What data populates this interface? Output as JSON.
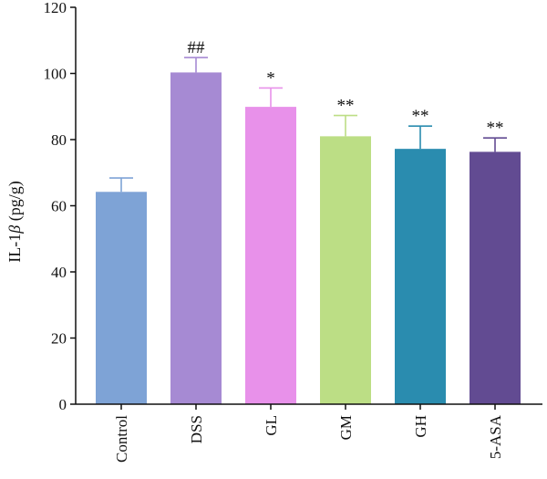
{
  "chart_data": {
    "type": "bar",
    "categories": [
      "Control",
      "DSS",
      "GL",
      "GM",
      "GH",
      "5-ASA"
    ],
    "values": [
      64.2,
      100.3,
      89.9,
      81.0,
      77.2,
      76.3
    ],
    "errors": [
      4.2,
      4.5,
      5.7,
      6.3,
      6.9,
      4.2
    ],
    "annotations": [
      "",
      "##",
      "*",
      "**",
      "**",
      "**"
    ],
    "colors": [
      "#7ea3d6",
      "#a68ad3",
      "#e891ea",
      "#bcde85",
      "#2a8caf",
      "#624b92"
    ],
    "ylabel_prefix": "IL-1",
    "ylabel_symbol": "β",
    "ylabel_suffix": " (pg/g)",
    "ylim": [
      0,
      120
    ],
    "yticks": [
      "0",
      "20",
      "40",
      "60",
      "80",
      "100",
      "120"
    ],
    "grid": false,
    "legend": "none"
  }
}
